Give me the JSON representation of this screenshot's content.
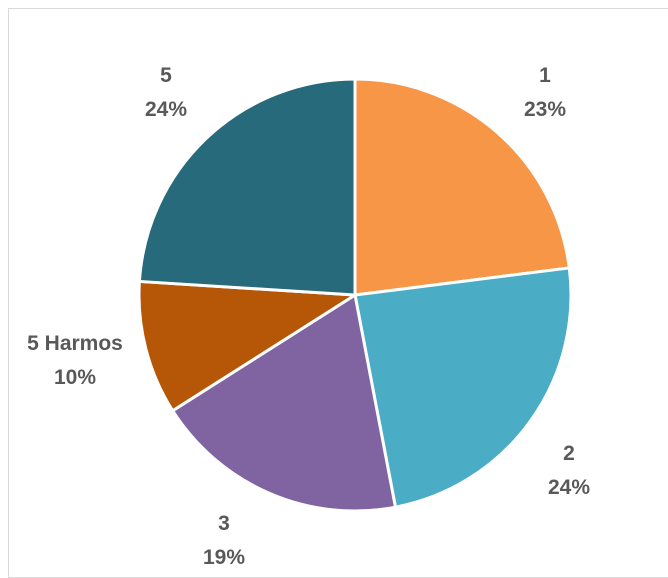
{
  "chart_data": {
    "type": "pie",
    "title": "",
    "slices": [
      {
        "label": "1",
        "value": 23,
        "percent_label": "23%",
        "color": "#F79646"
      },
      {
        "label": "2",
        "value": 24,
        "percent_label": "24%",
        "color": "#4BACC6"
      },
      {
        "label": "3",
        "value": 19,
        "percent_label": "19%",
        "color": "#8064A2"
      },
      {
        "label": "5 Harmos",
        "value": 10,
        "percent_label": "10%",
        "color": "#B65708"
      },
      {
        "label": "5",
        "value": 24,
        "percent_label": "24%",
        "color": "#276A7C"
      }
    ],
    "start_angle": "12 o'clock",
    "direction": "clockwise",
    "legend": "none",
    "label_color": "#595959"
  }
}
